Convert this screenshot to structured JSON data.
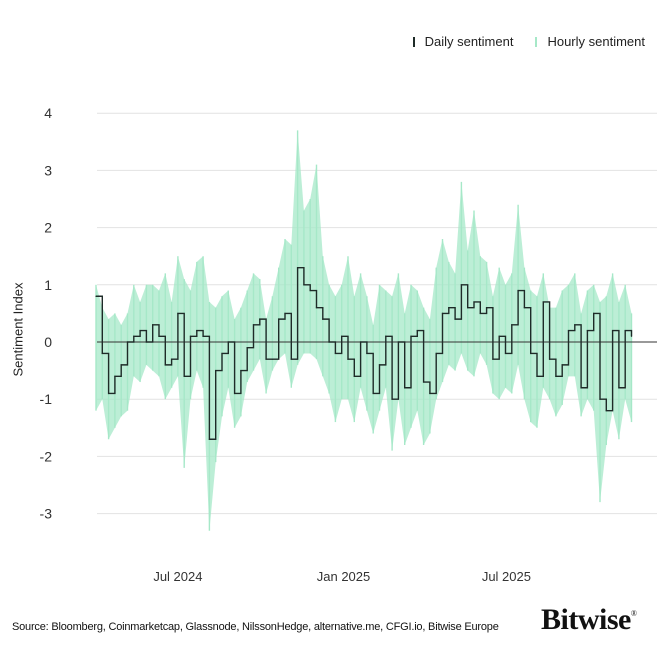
{
  "legend": {
    "daily_label": "Daily sentiment",
    "hourly_label": "Hourly sentiment"
  },
  "source": "Source: Bloomberg, Coinmarketcap, Glassnode, NilssonHedge, alternative.me, CFGI.io, Bitwise Europe",
  "logo": "Bitwise",
  "chart_data": {
    "type": "line",
    "title": "",
    "xlabel": "",
    "ylabel": "Sentiment Index",
    "ylim": [
      -3.5,
      4.3
    ],
    "yticks": [
      4,
      3,
      2,
      1,
      0,
      -1,
      -2,
      -3
    ],
    "xticks": [
      {
        "date": "2024-07-01",
        "label": "Jul 2024"
      },
      {
        "date": "2025-01-01",
        "label": "Jan 2025"
      },
      {
        "date": "2025-07-01",
        "label": "Jul 2025"
      }
    ],
    "xrange": [
      "2024-04-01",
      "2025-11-22"
    ],
    "grid": true,
    "legend_position": "top-right",
    "colors": {
      "daily": "#1e2b28",
      "hourly": "#a6e8c8",
      "grid": "#e2e2e2",
      "zero": "#333333"
    },
    "start_date": "2024-04-01",
    "step_days": 7,
    "series": [
      {
        "name": "Daily sentiment",
        "values": [
          0.8,
          -0.2,
          -0.9,
          -0.6,
          -0.4,
          0.0,
          0.1,
          0.2,
          0.0,
          0.3,
          0.1,
          -0.4,
          -0.3,
          0.5,
          -0.6,
          0.1,
          0.2,
          0.1,
          -1.7,
          -0.5,
          -0.2,
          0.0,
          -0.9,
          -0.5,
          -0.1,
          0.3,
          0.4,
          -0.3,
          -0.3,
          0.4,
          0.5,
          -0.3,
          1.3,
          1.0,
          0.9,
          0.6,
          0.4,
          0.0,
          -0.2,
          0.1,
          -0.3,
          -0.6,
          0.0,
          -0.2,
          -0.9,
          -0.4,
          0.1,
          -1.0,
          0.0,
          -0.8,
          0.1,
          0.2,
          -0.7,
          -0.9,
          -0.2,
          0.5,
          0.6,
          0.4,
          1.0,
          0.6,
          0.7,
          0.5,
          0.6,
          -0.3,
          0.1,
          -0.2,
          0.3,
          0.9,
          0.6,
          -0.2,
          -0.6,
          0.7,
          -0.3,
          -0.6,
          -0.4,
          0.2,
          0.3,
          -0.8,
          0.2,
          0.5,
          -1.0,
          -1.2,
          0.2,
          -0.8,
          0.2,
          0.1
        ]
      },
      {
        "name": "Hourly sentiment",
        "high": [
          1.0,
          0.6,
          0.4,
          0.5,
          0.3,
          0.5,
          1.0,
          0.7,
          1.0,
          1.0,
          0.9,
          1.2,
          0.7,
          1.5,
          1.1,
          0.9,
          1.4,
          1.5,
          0.7,
          0.6,
          0.8,
          0.9,
          0.4,
          0.6,
          0.9,
          1.2,
          1.1,
          0.4,
          0.8,
          1.3,
          1.8,
          1.7,
          3.7,
          2.3,
          2.5,
          3.1,
          1.5,
          1.0,
          0.8,
          1.0,
          1.5,
          0.8,
          1.2,
          0.8,
          0.3,
          1.0,
          0.9,
          0.8,
          1.2,
          0.5,
          1.0,
          0.9,
          0.6,
          0.4,
          1.3,
          1.8,
          1.4,
          1.2,
          2.8,
          1.6,
          2.3,
          1.5,
          1.4,
          0.8,
          1.3,
          1.0,
          1.2,
          2.4,
          1.3,
          0.9,
          0.8,
          1.2,
          0.6,
          0.6,
          0.9,
          1.0,
          1.2,
          0.5,
          0.9,
          1.0,
          0.7,
          0.8,
          1.2,
          0.7,
          1.0,
          0.5
        ],
        "low": [
          -1.2,
          -1.0,
          -1.7,
          -1.5,
          -1.3,
          -1.2,
          -0.6,
          -0.7,
          -0.4,
          -0.5,
          -0.6,
          -1.0,
          -0.8,
          -0.6,
          -2.2,
          -1.0,
          -0.5,
          -0.8,
          -3.3,
          -2.1,
          -1.3,
          -0.8,
          -1.5,
          -1.3,
          -0.7,
          -0.5,
          -0.3,
          -0.9,
          -0.5,
          -0.3,
          -0.2,
          -0.8,
          -0.4,
          -0.2,
          -0.2,
          -0.3,
          -0.6,
          -0.9,
          -1.4,
          -1.0,
          -1.0,
          -1.4,
          -0.8,
          -1.2,
          -1.6,
          -1.2,
          -0.8,
          -1.9,
          -1.0,
          -1.8,
          -1.5,
          -1.2,
          -1.8,
          -1.6,
          -1.0,
          -0.7,
          -0.4,
          -0.5,
          -0.2,
          -0.5,
          -0.6,
          -0.2,
          -0.4,
          -0.9,
          -1.0,
          -0.8,
          -0.9,
          -0.4,
          -1.0,
          -1.4,
          -1.5,
          -0.8,
          -1.0,
          -1.3,
          -1.1,
          -0.6,
          -0.6,
          -1.3,
          -1.0,
          -1.2,
          -2.8,
          -1.8,
          -1.2,
          -1.7,
          -1.0,
          -1.4
        ]
      }
    ]
  }
}
